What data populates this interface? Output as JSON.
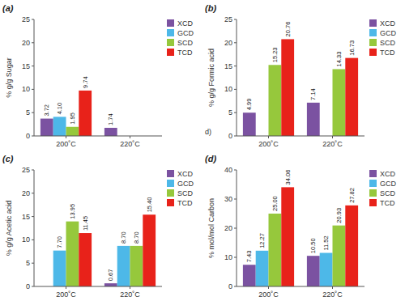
{
  "chart_data": [
    {
      "type": "bar",
      "title": "(a)",
      "y_label": "% g/g Sugar",
      "categories": [
        "200˚C",
        "220˚C"
      ],
      "series": [
        {
          "name": "XCD",
          "color": "#7b52a1",
          "values": [
            3.72,
            1.74
          ],
          "value_labels": [
            "3.72",
            "1.74"
          ]
        },
        {
          "name": "GCD",
          "color": "#4db8e8",
          "values": [
            4.1,
            null
          ],
          "value_labels": [
            "4.10",
            null
          ]
        },
        {
          "name": "SCD",
          "color": "#96c83c",
          "values": [
            1.95,
            null
          ],
          "value_labels": [
            "1.95",
            null
          ]
        },
        {
          "name": "TCD",
          "color": "#e8221a",
          "values": [
            9.74,
            null
          ],
          "value_labels": [
            "9.74",
            null
          ]
        }
      ],
      "ylim": [
        0,
        25
      ],
      "yticks": [
        0,
        5,
        10,
        15,
        20,
        25
      ],
      "grid": false,
      "legend": "upper-right",
      "data_labels": true
    },
    {
      "type": "bar",
      "title": "(b)",
      "y_label": "% g/g Formic acid",
      "annotations": [
        "d)"
      ],
      "categories": [
        "200˚C",
        "220˚C"
      ],
      "series": [
        {
          "name": "XCD",
          "color": "#7b52a1",
          "values": [
            4.99,
            7.14
          ],
          "value_labels": [
            "4.99",
            "7.14"
          ]
        },
        {
          "name": "GCD",
          "color": "#4db8e8",
          "values": [
            null,
            null
          ],
          "value_labels": [
            null,
            null
          ]
        },
        {
          "name": "SCD",
          "color": "#96c83c",
          "values": [
            15.23,
            14.33
          ],
          "value_labels": [
            "15.23",
            "14.33"
          ]
        },
        {
          "name": "TCD",
          "color": "#e8221a",
          "values": [
            20.76,
            16.73
          ],
          "value_labels": [
            "20.76",
            "16.73"
          ]
        }
      ],
      "ylim": [
        0,
        25
      ],
      "yticks": [
        0,
        5,
        10,
        15,
        20,
        25
      ],
      "grid": false,
      "legend": "upper-right",
      "data_labels": true
    },
    {
      "type": "bar",
      "title": "(c)",
      "y_label": "% g/g Acetic acid",
      "categories": [
        "200˚C",
        "220˚C"
      ],
      "series": [
        {
          "name": "XCD",
          "color": "#7b52a1",
          "values": [
            null,
            0.67
          ],
          "value_labels": [
            null,
            "0.67"
          ]
        },
        {
          "name": "GCD",
          "color": "#4db8e8",
          "values": [
            7.7,
            8.7
          ],
          "value_labels": [
            "7.70",
            "8.70"
          ]
        },
        {
          "name": "SCD",
          "color": "#96c83c",
          "values": [
            13.95,
            8.7
          ],
          "value_labels": [
            "13.95",
            "8.70"
          ]
        },
        {
          "name": "TCD",
          "color": "#e8221a",
          "values": [
            11.45,
            15.4
          ],
          "value_labels": [
            "11.45",
            "15.40"
          ]
        }
      ],
      "ylim": [
        0,
        25
      ],
      "yticks": [
        0,
        5,
        10,
        15,
        20,
        25
      ],
      "grid": false,
      "legend": "upper-right",
      "data_labels": true
    },
    {
      "type": "bar",
      "title": "(d)",
      "y_label": "% mol/mol Carbon",
      "categories": [
        "200˚C",
        "220˚C"
      ],
      "series": [
        {
          "name": "XCD",
          "color": "#7b52a1",
          "values": [
            7.43,
            10.5
          ],
          "value_labels": [
            "7.43",
            "10.50"
          ]
        },
        {
          "name": "GCD",
          "color": "#4db8e8",
          "values": [
            12.27,
            11.52
          ],
          "value_labels": [
            "12.27",
            "11.52"
          ]
        },
        {
          "name": "SCD",
          "color": "#96c83c",
          "values": [
            25.0,
            20.93
          ],
          "value_labels": [
            "25.00",
            "20.93"
          ]
        },
        {
          "name": "TCD",
          "color": "#e8221a",
          "values": [
            34.06,
            27.82
          ],
          "value_labels": [
            "34.06",
            "27.82"
          ]
        }
      ],
      "ylim": [
        0,
        40
      ],
      "yticks": [
        0,
        10,
        20,
        30,
        40
      ],
      "grid": false,
      "legend": "upper-right",
      "data_labels": true
    }
  ]
}
